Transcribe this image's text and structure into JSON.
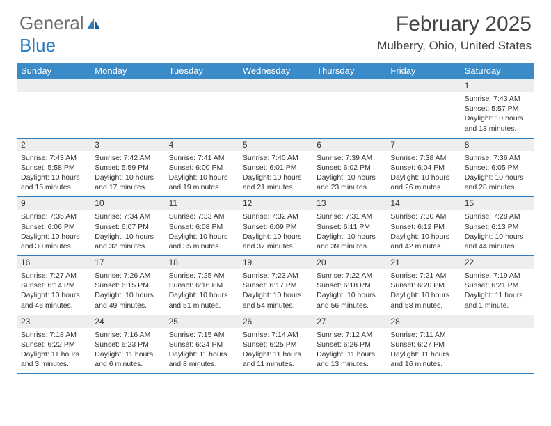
{
  "logo": {
    "text1": "General",
    "text2": "Blue"
  },
  "title": "February 2025",
  "location": "Mulberry, Ohio, United States",
  "colors": {
    "header_bg": "#3b8bc9",
    "header_text": "#ffffff",
    "rule": "#2f7ec0",
    "daynum_bg": "#eeeeee",
    "body_text": "#333333",
    "logo_gray": "#6b6b6b",
    "logo_blue": "#2f7ec0"
  },
  "weekdays": [
    "Sunday",
    "Monday",
    "Tuesday",
    "Wednesday",
    "Thursday",
    "Friday",
    "Saturday"
  ],
  "weeks": [
    [
      null,
      null,
      null,
      null,
      null,
      null,
      {
        "n": "1",
        "sunrise": "7:43 AM",
        "sunset": "5:57 PM",
        "daylight": "10 hours and 13 minutes."
      }
    ],
    [
      {
        "n": "2",
        "sunrise": "7:43 AM",
        "sunset": "5:58 PM",
        "daylight": "10 hours and 15 minutes."
      },
      {
        "n": "3",
        "sunrise": "7:42 AM",
        "sunset": "5:59 PM",
        "daylight": "10 hours and 17 minutes."
      },
      {
        "n": "4",
        "sunrise": "7:41 AM",
        "sunset": "6:00 PM",
        "daylight": "10 hours and 19 minutes."
      },
      {
        "n": "5",
        "sunrise": "7:40 AM",
        "sunset": "6:01 PM",
        "daylight": "10 hours and 21 minutes."
      },
      {
        "n": "6",
        "sunrise": "7:39 AM",
        "sunset": "6:02 PM",
        "daylight": "10 hours and 23 minutes."
      },
      {
        "n": "7",
        "sunrise": "7:38 AM",
        "sunset": "6:04 PM",
        "daylight": "10 hours and 26 minutes."
      },
      {
        "n": "8",
        "sunrise": "7:36 AM",
        "sunset": "6:05 PM",
        "daylight": "10 hours and 28 minutes."
      }
    ],
    [
      {
        "n": "9",
        "sunrise": "7:35 AM",
        "sunset": "6:06 PM",
        "daylight": "10 hours and 30 minutes."
      },
      {
        "n": "10",
        "sunrise": "7:34 AM",
        "sunset": "6:07 PM",
        "daylight": "10 hours and 32 minutes."
      },
      {
        "n": "11",
        "sunrise": "7:33 AM",
        "sunset": "6:08 PM",
        "daylight": "10 hours and 35 minutes."
      },
      {
        "n": "12",
        "sunrise": "7:32 AM",
        "sunset": "6:09 PM",
        "daylight": "10 hours and 37 minutes."
      },
      {
        "n": "13",
        "sunrise": "7:31 AM",
        "sunset": "6:11 PM",
        "daylight": "10 hours and 39 minutes."
      },
      {
        "n": "14",
        "sunrise": "7:30 AM",
        "sunset": "6:12 PM",
        "daylight": "10 hours and 42 minutes."
      },
      {
        "n": "15",
        "sunrise": "7:28 AM",
        "sunset": "6:13 PM",
        "daylight": "10 hours and 44 minutes."
      }
    ],
    [
      {
        "n": "16",
        "sunrise": "7:27 AM",
        "sunset": "6:14 PM",
        "daylight": "10 hours and 46 minutes."
      },
      {
        "n": "17",
        "sunrise": "7:26 AM",
        "sunset": "6:15 PM",
        "daylight": "10 hours and 49 minutes."
      },
      {
        "n": "18",
        "sunrise": "7:25 AM",
        "sunset": "6:16 PM",
        "daylight": "10 hours and 51 minutes."
      },
      {
        "n": "19",
        "sunrise": "7:23 AM",
        "sunset": "6:17 PM",
        "daylight": "10 hours and 54 minutes."
      },
      {
        "n": "20",
        "sunrise": "7:22 AM",
        "sunset": "6:18 PM",
        "daylight": "10 hours and 56 minutes."
      },
      {
        "n": "21",
        "sunrise": "7:21 AM",
        "sunset": "6:20 PM",
        "daylight": "10 hours and 58 minutes."
      },
      {
        "n": "22",
        "sunrise": "7:19 AM",
        "sunset": "6:21 PM",
        "daylight": "11 hours and 1 minute."
      }
    ],
    [
      {
        "n": "23",
        "sunrise": "7:18 AM",
        "sunset": "6:22 PM",
        "daylight": "11 hours and 3 minutes."
      },
      {
        "n": "24",
        "sunrise": "7:16 AM",
        "sunset": "6:23 PM",
        "daylight": "11 hours and 6 minutes."
      },
      {
        "n": "25",
        "sunrise": "7:15 AM",
        "sunset": "6:24 PM",
        "daylight": "11 hours and 8 minutes."
      },
      {
        "n": "26",
        "sunrise": "7:14 AM",
        "sunset": "6:25 PM",
        "daylight": "11 hours and 11 minutes."
      },
      {
        "n": "27",
        "sunrise": "7:12 AM",
        "sunset": "6:26 PM",
        "daylight": "11 hours and 13 minutes."
      },
      {
        "n": "28",
        "sunrise": "7:11 AM",
        "sunset": "6:27 PM",
        "daylight": "11 hours and 16 minutes."
      },
      null
    ]
  ],
  "labels": {
    "sunrise": "Sunrise: ",
    "sunset": "Sunset: ",
    "daylight": "Daylight: "
  }
}
